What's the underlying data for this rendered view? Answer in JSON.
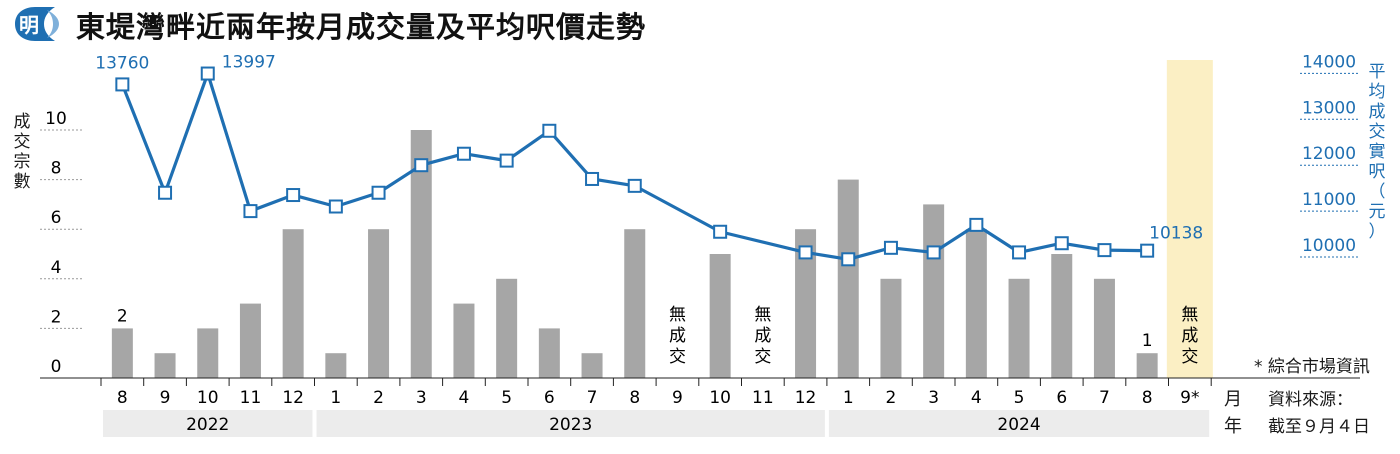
{
  "title": "東堤灣畔近兩年按月成交量及平均呎價走勢",
  "logo_char": "明",
  "left_axis_label": "成交宗數",
  "right_axis_label": "平均成交實呎（元）",
  "month_label": "月",
  "year_label": "年",
  "footnote": "* 綜合市場資訊",
  "source_line1": "資料來源：",
  "source_line2": "截至９月４日",
  "no_trade_label": "無成交",
  "colors": {
    "bar": "#a6a6a6",
    "line": "#1f6fb2",
    "highlight": "#fbefc4",
    "yearband": "#ececec"
  },
  "chart_data": {
    "type": "bar+line",
    "categories": [
      "8",
      "9",
      "10",
      "11",
      "12",
      "1",
      "2",
      "3",
      "4",
      "5",
      "6",
      "7",
      "8",
      "9",
      "10",
      "11",
      "12",
      "1",
      "2",
      "3",
      "4",
      "5",
      "6",
      "7",
      "8",
      "9*"
    ],
    "years": [
      {
        "label": "2022",
        "span": 5
      },
      {
        "label": "2023",
        "span": 12
      },
      {
        "label": "2024",
        "span": 9
      }
    ],
    "series": [
      {
        "name": "成交宗數",
        "kind": "bar",
        "axis": "left",
        "values": [
          2,
          1,
          2,
          3,
          6,
          1,
          6,
          10,
          3,
          4,
          2,
          1,
          6,
          null,
          5,
          null,
          6,
          8,
          4,
          7,
          6,
          4,
          5,
          4,
          1,
          null
        ]
      },
      {
        "name": "平均成交實呎（元）",
        "kind": "line",
        "axis": "right",
        "values": [
          13760,
          11400,
          13997,
          11000,
          11350,
          11100,
          11400,
          12000,
          12250,
          12100,
          12750,
          11700,
          11550,
          null,
          10550,
          null,
          10100,
          9950,
          10200,
          10100,
          10700,
          10100,
          10300,
          10150,
          10138,
          null
        ]
      }
    ],
    "left_axis": {
      "ticks": [
        0,
        2,
        4,
        6,
        8,
        10
      ],
      "ylim": [
        0,
        10
      ]
    },
    "right_axis": {
      "ticks": [
        10000,
        11000,
        12000,
        13000,
        14000
      ],
      "ylim": [
        8000,
        14000
      ]
    },
    "bar_labels": [
      {
        "index": 0,
        "text": "2"
      },
      {
        "index": 24,
        "text": "1"
      }
    ],
    "line_labels": [
      {
        "index": 0,
        "text": "13760"
      },
      {
        "index": 2,
        "text": "13997"
      },
      {
        "index": 24,
        "text": "10138"
      }
    ],
    "no_trade_indices": [
      13,
      15,
      25
    ],
    "highlight_index": 25
  }
}
